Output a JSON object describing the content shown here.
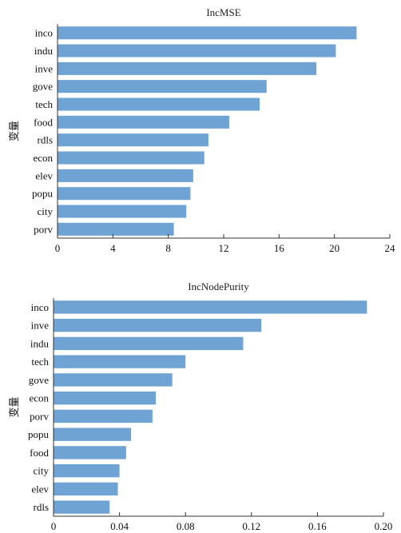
{
  "chart_data": [
    {
      "type": "bar",
      "orientation": "horizontal",
      "title": "IncMSE",
      "ylabel": "变量",
      "xlabel": "",
      "categories": [
        "inco",
        "indu",
        "inve",
        "gove",
        "tech",
        "food",
        "rdls",
        "econ",
        "elev",
        "popu",
        "city",
        "porv"
      ],
      "values": [
        21.6,
        20.1,
        18.7,
        15.1,
        14.6,
        12.4,
        10.9,
        10.6,
        9.8,
        9.6,
        9.3,
        8.4
      ],
      "xlim": [
        0,
        24
      ],
      "xticks": [
        0,
        4,
        8,
        12,
        16,
        20,
        24
      ],
      "xtick_labels": [
        "0",
        "4",
        "8",
        "12",
        "16",
        "20",
        "24"
      ],
      "bar_color": "#6fa3d4"
    },
    {
      "type": "bar",
      "orientation": "horizontal",
      "title": "IncNodePurity",
      "ylabel": "变量",
      "xlabel": "",
      "categories": [
        "inco",
        "inve",
        "indu",
        "tech",
        "gove",
        "econ",
        "porv",
        "popu",
        "food",
        "city",
        "elev",
        "rdls"
      ],
      "values": [
        0.19,
        0.126,
        0.115,
        0.08,
        0.072,
        0.062,
        0.06,
        0.047,
        0.044,
        0.04,
        0.039,
        0.034
      ],
      "xlim": [
        0,
        0.2
      ],
      "xticks": [
        0,
        0.04,
        0.08,
        0.12,
        0.16,
        0.2
      ],
      "xtick_labels": [
        "0",
        "0.04",
        "0.08",
        "0.12",
        "0.16",
        "0.20"
      ],
      "bar_color": "#6fa3d4"
    }
  ]
}
